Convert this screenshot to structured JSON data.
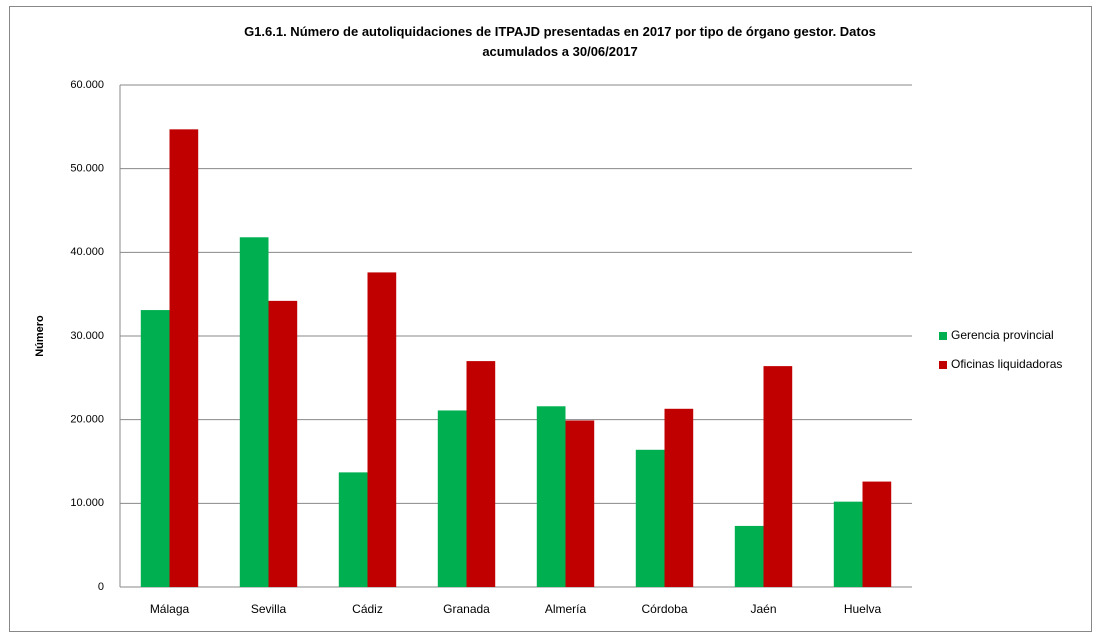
{
  "chart_data": {
    "type": "bar",
    "title": "G1.6.1. Número de autoliquidaciones de ITPAJD presentadas en 2017 por tipo de órgano gestor. Datos acumulados a 30/06/2017",
    "ylabel": "Número",
    "categories": [
      "Málaga",
      "Sevilla",
      "Cádiz",
      "Granada",
      "Almería",
      "Córdoba",
      "Jaén",
      "Huelva"
    ],
    "series": [
      {
        "name": "Gerencia provincial",
        "color": "#00b050",
        "values": [
          33100,
          41800,
          13700,
          21100,
          21600,
          16400,
          7300,
          10200
        ]
      },
      {
        "name": "Oficinas liquidadoras",
        "color": "#c00000",
        "values": [
          54700,
          34200,
          37600,
          27000,
          19900,
          21300,
          26400,
          12600
        ]
      }
    ],
    "ylim": [
      0,
      60000
    ],
    "yticks": [
      0,
      {
        "value": 10000,
        "label": "10.000"
      },
      {
        "value": 20000,
        "label": "20.000"
      },
      {
        "value": 30000,
        "label": "30.000"
      },
      {
        "value": 40000,
        "label": "40.000"
      },
      {
        "value": 50000,
        "label": "50.000"
      },
      {
        "value": 60000,
        "label": "60.000"
      }
    ],
    "grid": true,
    "legend": "right"
  }
}
